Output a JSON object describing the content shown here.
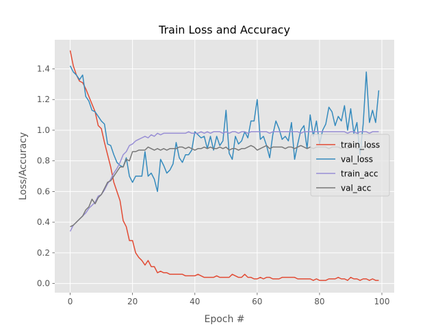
{
  "chart_data": {
    "type": "line",
    "title": "Train Loss and Accuracy",
    "xlabel": "Epoch #",
    "ylabel": "Loss/Accuracy",
    "xlim": [
      -4.95,
      103.95
    ],
    "ylim": [
      -0.06,
      1.59
    ],
    "xticks": [
      0,
      20,
      40,
      60,
      80,
      100
    ],
    "yticks": [
      0.0,
      0.2,
      0.4,
      0.6,
      0.8,
      1.0,
      1.2,
      1.4
    ],
    "grid": true,
    "legend_position": "center-right",
    "series": [
      {
        "name": "train_loss",
        "color": "#E24A33",
        "values": [
          1.52,
          1.42,
          1.36,
          1.32,
          1.31,
          1.27,
          1.22,
          1.17,
          1.12,
          1.03,
          1.01,
          0.92,
          0.84,
          0.76,
          0.66,
          0.6,
          0.54,
          0.41,
          0.37,
          0.28,
          0.28,
          0.2,
          0.17,
          0.15,
          0.12,
          0.15,
          0.11,
          0.11,
          0.07,
          0.08,
          0.07,
          0.07,
          0.06,
          0.06,
          0.06,
          0.06,
          0.06,
          0.05,
          0.05,
          0.05,
          0.05,
          0.06,
          0.05,
          0.04,
          0.04,
          0.04,
          0.04,
          0.05,
          0.04,
          0.04,
          0.04,
          0.04,
          0.06,
          0.05,
          0.04,
          0.04,
          0.06,
          0.04,
          0.04,
          0.03,
          0.03,
          0.04,
          0.03,
          0.04,
          0.04,
          0.03,
          0.03,
          0.03,
          0.04,
          0.04,
          0.04,
          0.04,
          0.04,
          0.03,
          0.03,
          0.03,
          0.03,
          0.03,
          0.02,
          0.03,
          0.02,
          0.02,
          0.02,
          0.03,
          0.03,
          0.03,
          0.04,
          0.03,
          0.03,
          0.02,
          0.04,
          0.03,
          0.03,
          0.02,
          0.03,
          0.03,
          0.02,
          0.03,
          0.02,
          0.02
        ]
      },
      {
        "name": "val_loss",
        "color": "#348ABD",
        "values": [
          1.42,
          1.38,
          1.36,
          1.33,
          1.36,
          1.22,
          1.19,
          1.13,
          1.12,
          1.09,
          1.06,
          1.04,
          0.91,
          0.9,
          0.84,
          0.79,
          0.77,
          0.76,
          0.82,
          0.7,
          0.66,
          0.7,
          0.7,
          0.7,
          0.86,
          0.7,
          0.72,
          0.68,
          0.6,
          0.81,
          0.77,
          0.72,
          0.74,
          0.78,
          0.92,
          0.82,
          0.79,
          0.84,
          0.84,
          0.87,
          0.99,
          0.97,
          0.95,
          0.96,
          0.88,
          0.96,
          0.87,
          0.96,
          0.9,
          0.93,
          1.13,
          0.85,
          0.81,
          0.96,
          0.91,
          0.93,
          0.99,
          0.95,
          1.06,
          1.06,
          1.2,
          0.94,
          0.96,
          0.9,
          0.82,
          0.97,
          1.06,
          1.01,
          0.94,
          0.96,
          0.93,
          1.05,
          0.81,
          0.91,
          1.0,
          1.03,
          0.88,
          1.1,
          0.96,
          1.06,
          0.91,
          1.0,
          1.04,
          1.15,
          1.12,
          1.03,
          1.09,
          1.06,
          1.16,
          1.0,
          1.14,
          0.98,
          1.05,
          0.84,
          1.04,
          1.38,
          1.05,
          1.13,
          1.05,
          1.26
        ]
      },
      {
        "name": "train_acc",
        "color": "#988ED5",
        "values": [
          0.34,
          0.38,
          0.4,
          0.42,
          0.44,
          0.46,
          0.49,
          0.51,
          0.53,
          0.57,
          0.58,
          0.61,
          0.65,
          0.68,
          0.72,
          0.75,
          0.79,
          0.84,
          0.86,
          0.9,
          0.91,
          0.93,
          0.94,
          0.95,
          0.96,
          0.95,
          0.97,
          0.96,
          0.98,
          0.97,
          0.98,
          0.98,
          0.98,
          0.98,
          0.98,
          0.98,
          0.98,
          0.98,
          0.99,
          0.98,
          0.98,
          0.98,
          0.99,
          0.98,
          0.99,
          0.98,
          0.99,
          0.99,
          0.99,
          0.98,
          0.99,
          0.98,
          0.99,
          0.99,
          0.98,
          0.99,
          0.99,
          0.98,
          0.99,
          0.99,
          0.99,
          0.99,
          0.99,
          0.99,
          0.98,
          0.99,
          0.99,
          0.99,
          0.99,
          0.99,
          0.99,
          0.99,
          0.99,
          0.99,
          0.98,
          0.99,
          0.99,
          0.99,
          0.99,
          0.99,
          0.99,
          0.99,
          0.99,
          0.99,
          0.99,
          0.99,
          0.99,
          0.99,
          0.99,
          0.98,
          0.99,
          0.99,
          0.98,
          0.99,
          0.99,
          0.99,
          0.98,
          0.99,
          0.99,
          0.99
        ]
      },
      {
        "name": "val_acc",
        "color": "#777777",
        "values": [
          0.37,
          0.38,
          0.4,
          0.42,
          0.44,
          0.48,
          0.5,
          0.55,
          0.52,
          0.56,
          0.58,
          0.62,
          0.66,
          0.67,
          0.7,
          0.73,
          0.76,
          0.76,
          0.81,
          0.8,
          0.86,
          0.86,
          0.87,
          0.87,
          0.87,
          0.89,
          0.88,
          0.87,
          0.88,
          0.87,
          0.88,
          0.87,
          0.88,
          0.88,
          0.88,
          0.89,
          0.89,
          0.88,
          0.89,
          0.88,
          0.87,
          0.88,
          0.88,
          0.89,
          0.88,
          0.89,
          0.88,
          0.88,
          0.89,
          0.88,
          0.89,
          0.87,
          0.88,
          0.88,
          0.87,
          0.88,
          0.88,
          0.89,
          0.9,
          0.89,
          0.87,
          0.88,
          0.89,
          0.9,
          0.88,
          0.89,
          0.89,
          0.89,
          0.89,
          0.88,
          0.89,
          0.89,
          0.88,
          0.89,
          0.9,
          0.89,
          0.88,
          0.89,
          0.88,
          0.89,
          0.89,
          0.89,
          0.89,
          0.88,
          0.89,
          0.89,
          0.89,
          0.88,
          0.89,
          0.88,
          0.89,
          0.9,
          0.88,
          0.89,
          0.89,
          0.9,
          0.88,
          0.89,
          0.89,
          0.89
        ]
      }
    ]
  }
}
